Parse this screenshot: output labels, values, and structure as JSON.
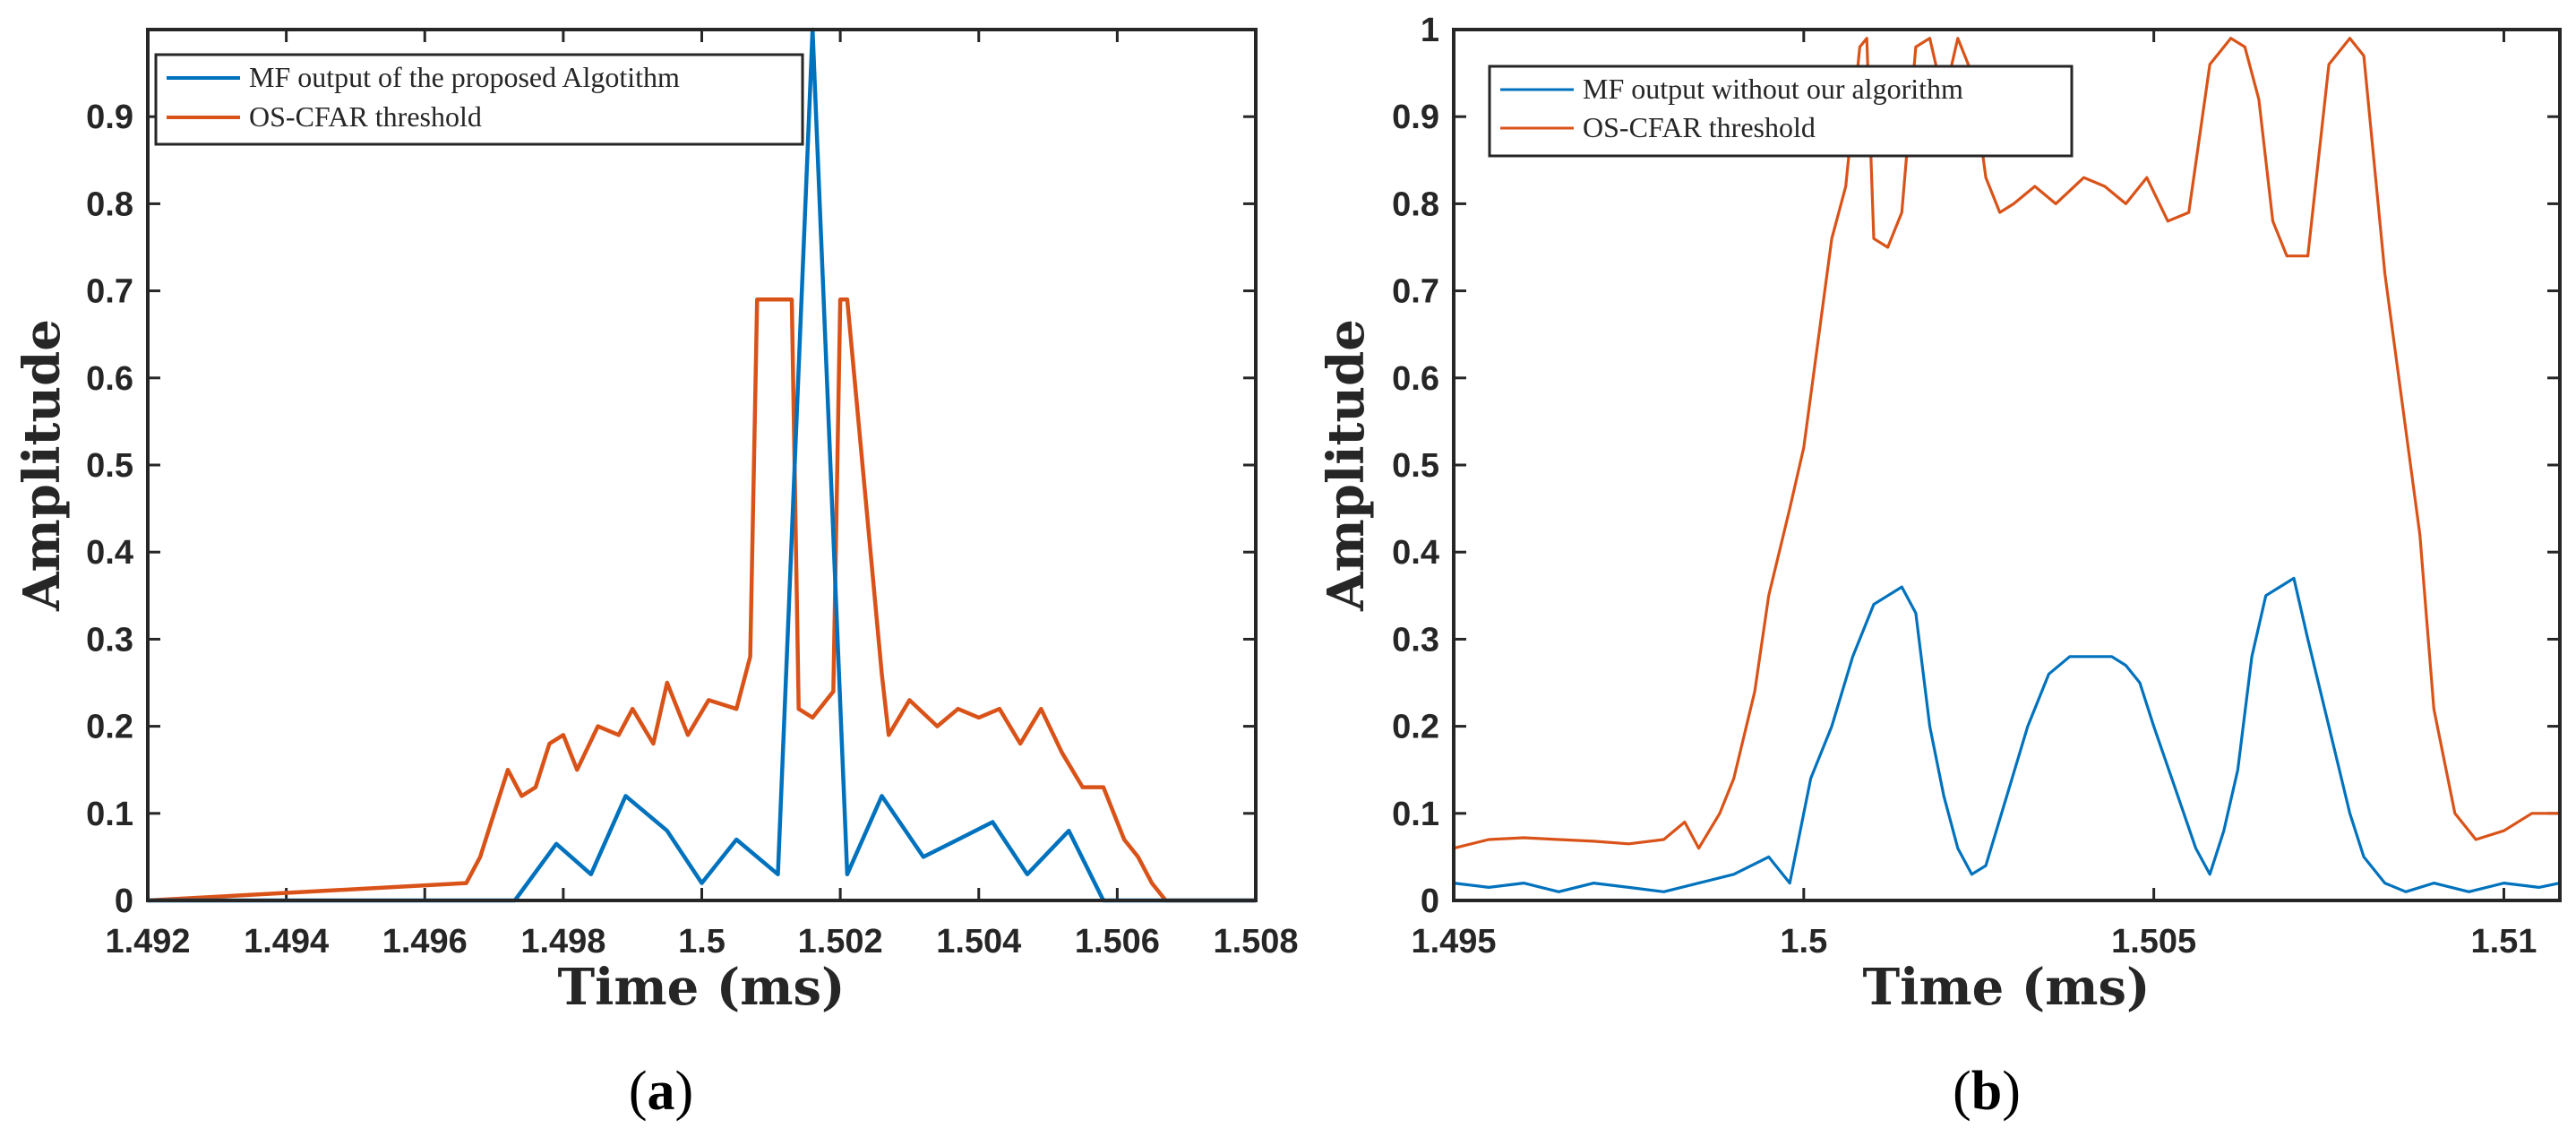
{
  "colors": {
    "blue": "#0072BD",
    "orange": "#D95319",
    "axis": "#262626"
  },
  "panels": [
    {
      "label_open": "(",
      "label_letter": "a",
      "label_close": ")",
      "chart_data": {
        "type": "line",
        "title": "",
        "xlabel": "Time (ms)",
        "ylabel": "Amplitude",
        "xlim": [
          1.492,
          1.508
        ],
        "ylim": [
          0,
          1
        ],
        "xticks": [
          1.492,
          1.494,
          1.496,
          1.498,
          1.5,
          1.502,
          1.504,
          1.506,
          1.508
        ],
        "xtick_labels": [
          "1.492",
          "1.494",
          "1.496",
          "1.498",
          "1.5",
          "1.502",
          "1.504",
          "1.506",
          "1.508"
        ],
        "yticks": [
          0,
          0.1,
          0.2,
          0.3,
          0.4,
          0.5,
          0.6,
          0.7,
          0.8,
          0.9
        ],
        "ytick_labels": [
          "0",
          "0.1",
          "0.2",
          "0.3",
          "0.4",
          "0.5",
          "0.6",
          "0.7",
          "0.8",
          "0.9"
        ],
        "legend_position": "top-left",
        "series": [
          {
            "name": "MF output of the proposed Algotithm",
            "color": "#0072BD",
            "x": [
              1.492,
              1.4973,
              1.4979,
              1.4984,
              1.4989,
              1.4995,
              1.5,
              1.5005,
              1.5011,
              1.5016,
              1.5021,
              1.5026,
              1.5032,
              1.5037,
              1.5042,
              1.5047,
              1.5053,
              1.5058,
              1.508
            ],
            "y": [
              0,
              0,
              0.065,
              0.03,
              0.12,
              0.08,
              0.02,
              0.07,
              0.03,
              1.0,
              0.03,
              0.12,
              0.05,
              0.07,
              0.09,
              0.03,
              0.08,
              0,
              0
            ]
          },
          {
            "name": "OS-CFAR threshold",
            "color": "#D95319",
            "x": [
              1.492,
              1.4966,
              1.4968,
              1.4972,
              1.4974,
              1.4976,
              1.4978,
              1.498,
              1.4982,
              1.4985,
              1.4988,
              1.499,
              1.4993,
              1.4995,
              1.4998,
              1.5001,
              1.5005,
              1.5007,
              1.5008,
              1.5013,
              1.5014,
              1.5016,
              1.5019,
              1.502,
              1.5021,
              1.5026,
              1.5027,
              1.503,
              1.5034,
              1.5037,
              1.504,
              1.5043,
              1.5046,
              1.5049,
              1.5052,
              1.5055,
              1.5058,
              1.5061,
              1.5063,
              1.5065,
              1.5067,
              1.508
            ],
            "y": [
              0,
              0.02,
              0.05,
              0.15,
              0.12,
              0.13,
              0.18,
              0.19,
              0.15,
              0.2,
              0.19,
              0.22,
              0.18,
              0.25,
              0.19,
              0.23,
              0.22,
              0.28,
              0.69,
              0.69,
              0.22,
              0.21,
              0.24,
              0.69,
              0.69,
              0.26,
              0.19,
              0.23,
              0.2,
              0.22,
              0.21,
              0.22,
              0.18,
              0.22,
              0.17,
              0.13,
              0.13,
              0.07,
              0.05,
              0.02,
              0,
              0
            ]
          }
        ]
      }
    },
    {
      "label_open": "(",
      "label_letter": "b",
      "label_close": ")",
      "chart_data": {
        "type": "line",
        "title": "",
        "xlabel": "Time (ms)",
        "ylabel": "Amplitude",
        "xlim": [
          1.495,
          1.5108
        ],
        "ylim": [
          0,
          1
        ],
        "xticks": [
          1.495,
          1.5,
          1.505,
          1.51
        ],
        "xtick_labels": [
          "1.495",
          "1.5",
          "1.505",
          "1.51"
        ],
        "yticks": [
          0,
          0.1,
          0.2,
          0.3,
          0.4,
          0.5,
          0.6,
          0.7,
          0.8,
          0.9,
          1
        ],
        "ytick_labels": [
          "0",
          "0.1",
          "0.2",
          "0.3",
          "0.4",
          "0.5",
          "0.6",
          "0.7",
          "0.8",
          "0.9",
          "1"
        ],
        "legend_position": "top-left",
        "series": [
          {
            "name": "MF output without our algorithm",
            "color": "#0072BD",
            "x": [
              1.495,
              1.4955,
              1.496,
              1.4965,
              1.497,
              1.4975,
              1.498,
              1.4985,
              1.499,
              1.4995,
              1.4998,
              1.5001,
              1.5004,
              1.5007,
              1.501,
              1.5012,
              1.5014,
              1.5016,
              1.5018,
              1.502,
              1.5022,
              1.5024,
              1.5026,
              1.5029,
              1.5032,
              1.5035,
              1.5038,
              1.504,
              1.5042,
              1.5044,
              1.5046,
              1.5048,
              1.505,
              1.5053,
              1.5056,
              1.5058,
              1.506,
              1.5062,
              1.5064,
              1.5066,
              1.5068,
              1.507,
              1.5072,
              1.5075,
              1.5078,
              1.508,
              1.5083,
              1.5086,
              1.509,
              1.5095,
              1.51,
              1.5105,
              1.5108
            ],
            "y": [
              0.02,
              0.015,
              0.02,
              0.01,
              0.02,
              0.015,
              0.01,
              0.02,
              0.03,
              0.05,
              0.02,
              0.14,
              0.2,
              0.28,
              0.34,
              0.35,
              0.36,
              0.33,
              0.2,
              0.12,
              0.06,
              0.03,
              0.04,
              0.12,
              0.2,
              0.26,
              0.28,
              0.28,
              0.28,
              0.28,
              0.27,
              0.25,
              0.2,
              0.13,
              0.06,
              0.03,
              0.08,
              0.15,
              0.28,
              0.35,
              0.36,
              0.37,
              0.3,
              0.2,
              0.1,
              0.05,
              0.02,
              0.01,
              0.02,
              0.01,
              0.02,
              0.015,
              0.02
            ]
          },
          {
            "name": "OS-CFAR threshold",
            "color": "#D95319",
            "x": [
              1.495,
              1.4955,
              1.496,
              1.4965,
              1.497,
              1.4975,
              1.498,
              1.4983,
              1.4985,
              1.4988,
              1.499,
              1.4993,
              1.4995,
              1.4998,
              1.5,
              1.5002,
              1.5004,
              1.5006,
              1.5007,
              1.5008,
              1.5009,
              1.501,
              1.5012,
              1.5014,
              1.5016,
              1.5018,
              1.502,
              1.5022,
              1.5024,
              1.5026,
              1.5028,
              1.503,
              1.5033,
              1.5036,
              1.504,
              1.5043,
              1.5046,
              1.5049,
              1.5052,
              1.5055,
              1.5058,
              1.5061,
              1.5063,
              1.5065,
              1.5067,
              1.5069,
              1.5072,
              1.5075,
              1.5078,
              1.508,
              1.5083,
              1.5085,
              1.5088,
              1.509,
              1.5093,
              1.5096,
              1.51,
              1.5104,
              1.5108
            ],
            "y": [
              0.06,
              0.07,
              0.072,
              0.07,
              0.068,
              0.065,
              0.07,
              0.09,
              0.06,
              0.1,
              0.14,
              0.24,
              0.35,
              0.45,
              0.52,
              0.64,
              0.76,
              0.82,
              0.9,
              0.98,
              0.99,
              0.76,
              0.75,
              0.79,
              0.98,
              0.99,
              0.92,
              0.99,
              0.95,
              0.83,
              0.79,
              0.8,
              0.82,
              0.8,
              0.83,
              0.82,
              0.8,
              0.83,
              0.78,
              0.79,
              0.96,
              0.99,
              0.98,
              0.92,
              0.78,
              0.74,
              0.74,
              0.96,
              0.99,
              0.97,
              0.72,
              0.6,
              0.42,
              0.22,
              0.1,
              0.07,
              0.08,
              0.1,
              0.1
            ]
          }
        ]
      }
    }
  ]
}
